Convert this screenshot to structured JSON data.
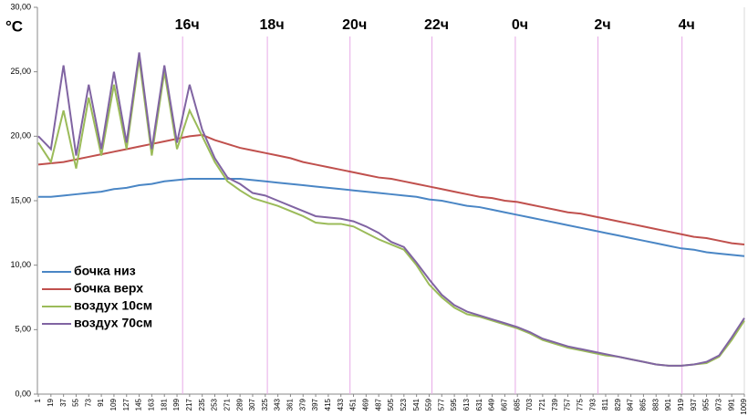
{
  "chart_data": {
    "type": "line",
    "y_label": "°C",
    "x": [
      1,
      19,
      37,
      55,
      73,
      91,
      109,
      127,
      145,
      163,
      181,
      199,
      217,
      235,
      253,
      271,
      289,
      307,
      325,
      343,
      361,
      379,
      397,
      415,
      433,
      451,
      469,
      487,
      505,
      523,
      541,
      559,
      577,
      595,
      613,
      631,
      649,
      667,
      685,
      703,
      721,
      739,
      757,
      775,
      793,
      811,
      829,
      847,
      865,
      883,
      901,
      919,
      937,
      955,
      973,
      991,
      1009
    ],
    "xlim": [
      1,
      1009
    ],
    "xticks": [
      1,
      19,
      37,
      55,
      73,
      91,
      109,
      127,
      145,
      163,
      181,
      199,
      217,
      235,
      253,
      271,
      289,
      307,
      325,
      343,
      361,
      379,
      397,
      415,
      433,
      451,
      469,
      487,
      505,
      523,
      541,
      559,
      577,
      595,
      613,
      631,
      649,
      667,
      685,
      703,
      721,
      739,
      757,
      775,
      793,
      811,
      829,
      847,
      865,
      883,
      901,
      919,
      937,
      955,
      973,
      991,
      1009
    ],
    "ylim": [
      0,
      30
    ],
    "yticks": [
      {
        "value": 0,
        "label": "0,00"
      },
      {
        "value": 5,
        "label": "5,00"
      },
      {
        "value": 10,
        "label": "10,00"
      },
      {
        "value": 15,
        "label": "15,00"
      },
      {
        "value": 20,
        "label": "20,00"
      },
      {
        "value": 25,
        "label": "25,00"
      },
      {
        "value": 30,
        "label": "30,00"
      }
    ],
    "markers": [
      {
        "value": 207,
        "label": "16ч"
      },
      {
        "value": 328,
        "label": "18ч"
      },
      {
        "value": 446,
        "label": "20ч"
      },
      {
        "value": 563,
        "label": "22ч"
      },
      {
        "value": 682,
        "label": "0ч"
      },
      {
        "value": 800,
        "label": "2ч"
      },
      {
        "value": 920,
        "label": "4ч"
      }
    ],
    "marker_color": "#e7a9e7",
    "legend_position": "left",
    "grid": false,
    "series": [
      {
        "name": "бочка низ",
        "color": "#4a86c5",
        "values": [
          15.3,
          15.3,
          15.4,
          15.5,
          15.6,
          15.7,
          15.9,
          16.0,
          16.2,
          16.3,
          16.5,
          16.6,
          16.7,
          16.7,
          16.7,
          16.7,
          16.7,
          16.6,
          16.5,
          16.4,
          16.3,
          16.2,
          16.1,
          16.0,
          15.9,
          15.8,
          15.7,
          15.6,
          15.5,
          15.4,
          15.3,
          15.1,
          15.0,
          14.8,
          14.6,
          14.5,
          14.3,
          14.1,
          13.9,
          13.7,
          13.5,
          13.3,
          13.1,
          12.9,
          12.7,
          12.5,
          12.3,
          12.1,
          11.9,
          11.7,
          11.5,
          11.3,
          11.2,
          11.0,
          10.9,
          10.8,
          10.7
        ]
      },
      {
        "name": "бочка верх",
        "color": "#c0504d",
        "values": [
          17.8,
          17.9,
          18.0,
          18.2,
          18.4,
          18.6,
          18.8,
          19.0,
          19.2,
          19.4,
          19.6,
          19.8,
          20.0,
          20.1,
          19.7,
          19.4,
          19.1,
          18.9,
          18.7,
          18.5,
          18.3,
          18.0,
          17.8,
          17.6,
          17.4,
          17.2,
          17.0,
          16.8,
          16.7,
          16.5,
          16.3,
          16.1,
          15.9,
          15.7,
          15.5,
          15.3,
          15.2,
          15.0,
          14.9,
          14.7,
          14.5,
          14.3,
          14.1,
          14.0,
          13.8,
          13.6,
          13.4,
          13.2,
          13.0,
          12.8,
          12.6,
          12.4,
          12.2,
          12.1,
          11.9,
          11.7,
          11.6
        ]
      },
      {
        "name": "воздух 10см",
        "color": "#9bbb59",
        "values": [
          19.5,
          18,
          22,
          17.5,
          23,
          18.5,
          24,
          19,
          26,
          18.5,
          25,
          19,
          22,
          20,
          18,
          16.5,
          15.8,
          15.2,
          14.9,
          14.6,
          14.2,
          13.8,
          13.3,
          13.2,
          13.2,
          13.0,
          12.5,
          12.0,
          11.6,
          11.2,
          10.0,
          8.5,
          7.5,
          6.7,
          6.2,
          6.0,
          5.7,
          5.4,
          5.1,
          4.7,
          4.2,
          3.9,
          3.6,
          3.4,
          3.2,
          3.0,
          2.9,
          2.7,
          2.5,
          2.3,
          2.2,
          2.2,
          2.3,
          2.4,
          2.9,
          4.2,
          5.7
        ]
      },
      {
        "name": "воздух 70см",
        "color": "#8064a2",
        "values": [
          20,
          19,
          25.5,
          18.5,
          24,
          19,
          25,
          19.5,
          26.5,
          19,
          25.5,
          19.5,
          24,
          20.5,
          18.3,
          16.8,
          16.3,
          15.6,
          15.4,
          15.0,
          14.6,
          14.2,
          13.8,
          13.7,
          13.6,
          13.4,
          13.0,
          12.5,
          11.8,
          11.4,
          10.2,
          8.9,
          7.7,
          6.9,
          6.4,
          6.1,
          5.8,
          5.5,
          5.2,
          4.8,
          4.3,
          4.0,
          3.7,
          3.5,
          3.3,
          3.1,
          2.9,
          2.7,
          2.5,
          2.3,
          2.2,
          2.2,
          2.3,
          2.5,
          3.0,
          4.4,
          5.9
        ]
      }
    ]
  }
}
